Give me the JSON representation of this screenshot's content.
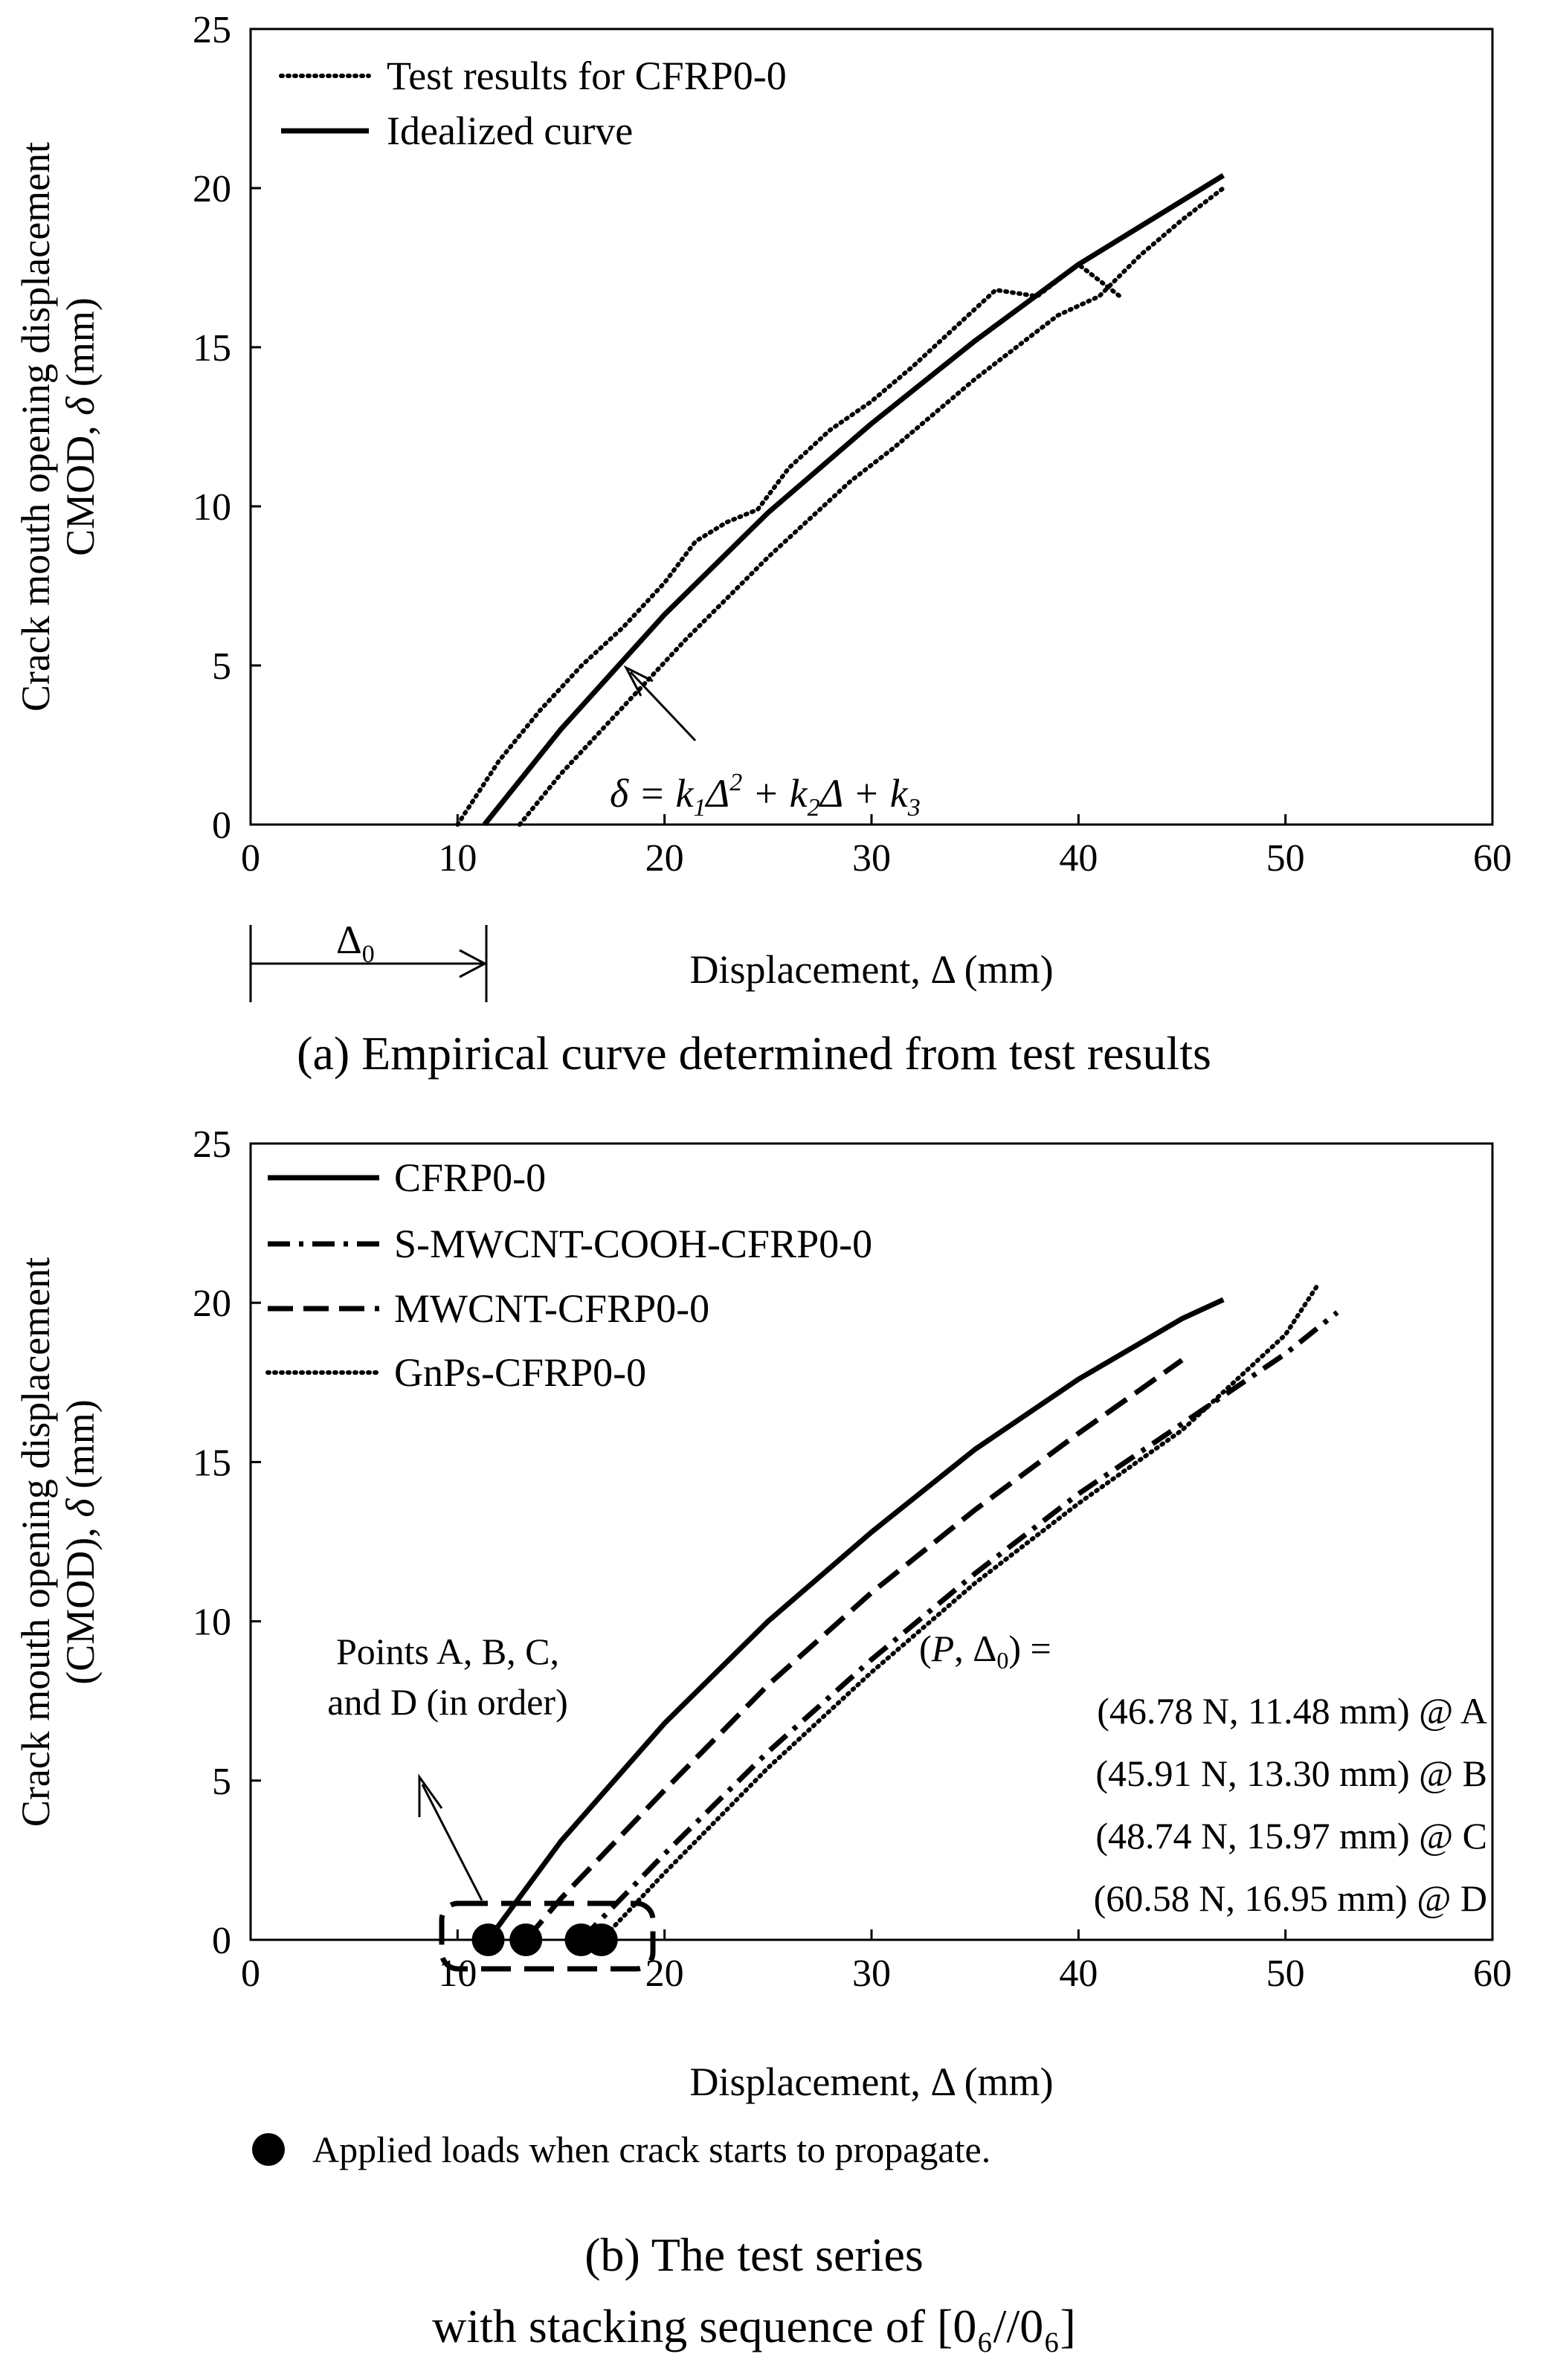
{
  "chart_data": [
    {
      "type": "line",
      "xlabel": "Displacement, Δ (mm)",
      "ylabel": "Crack mouth opening displacement CMOD, δ (mm)",
      "xlim": [
        0,
        60
      ],
      "ylim": [
        0,
        25
      ],
      "x_ticks": [
        "0",
        "10",
        "20",
        "30",
        "40",
        "50",
        "60"
      ],
      "y_ticks": [
        "0",
        "5",
        "10",
        "15",
        "20",
        "25"
      ],
      "grid": false,
      "legend_position": "top-left",
      "series": [
        {
          "name": "Test results for CFRP0-0",
          "style": "dotted",
          "x": [
            10.0,
            12,
            14,
            16,
            18,
            20,
            21.5,
            23,
            24.5,
            26,
            28,
            30,
            32,
            34,
            36,
            38,
            40,
            42
          ],
          "y": [
            0,
            2.0,
            3.6,
            5.0,
            6.2,
            7.6,
            8.9,
            9.5,
            9.9,
            11.2,
            12.4,
            13.3,
            14.4,
            15.6,
            16.8,
            16.6,
            17.6,
            16.6
          ],
          "x2": [
            13.0,
            15,
            17,
            19,
            21,
            23,
            25,
            27,
            29,
            31,
            33,
            35,
            37,
            39,
            41,
            43,
            45,
            47
          ],
          "y2": [
            0,
            1.6,
            3.0,
            4.4,
            5.8,
            7.1,
            8.4,
            9.6,
            10.8,
            11.8,
            12.9,
            14.0,
            15.0,
            16.0,
            16.6,
            17.9,
            19.0,
            20.0
          ]
        },
        {
          "name": "Idealized curve",
          "style": "solid",
          "x": [
            11.3,
            15,
            20,
            25,
            30,
            35,
            40,
            45,
            47
          ],
          "y": [
            0,
            3.0,
            6.6,
            9.8,
            12.6,
            15.2,
            17.6,
            19.6,
            20.4
          ]
        }
      ],
      "annotations": [
        {
          "kind": "equation",
          "text": "δ = k₁Δ² + k₂Δ + k₃"
        },
        {
          "kind": "dimension",
          "text": "Δ₀"
        }
      ],
      "caption": "(a) Empirical curve determined from test results"
    },
    {
      "type": "line",
      "xlabel": "Displacement, Δ (mm)",
      "ylabel": "Crack mouth opening displacement (CMOD), δ (mm)",
      "xlim": [
        0,
        60
      ],
      "ylim": [
        0,
        25
      ],
      "x_ticks": [
        "0",
        "10",
        "20",
        "30",
        "40",
        "50",
        "60"
      ],
      "y_ticks": [
        "0",
        "5",
        "10",
        "15",
        "20",
        "25"
      ],
      "grid": false,
      "legend_position": "top-left",
      "series": [
        {
          "name": "CFRP0-0",
          "style": "solid",
          "x": [
            11.48,
            15,
            20,
            25,
            30,
            35,
            40,
            45,
            47
          ],
          "y": [
            0,
            3.1,
            6.8,
            10.0,
            12.8,
            15.4,
            17.6,
            19.5,
            20.1
          ]
        },
        {
          "name": "S-MWCNT-COOH-CFRP0-0",
          "style": "dash-dot",
          "x": [
            15.97,
            20,
            25,
            30,
            35,
            40,
            45,
            50,
            52.5
          ],
          "y": [
            0,
            2.7,
            5.9,
            8.8,
            11.5,
            14.0,
            16.2,
            18.4,
            19.7
          ]
        },
        {
          "name": "MWCNT-CFRP0-0",
          "style": "dashed",
          "x": [
            13.3,
            15,
            20,
            25,
            30,
            35,
            40,
            45
          ],
          "y": [
            0,
            1.3,
            4.7,
            8.0,
            10.9,
            13.5,
            15.9,
            18.2
          ]
        },
        {
          "name": "GnPs-CFRP0-0",
          "style": "dotted",
          "x": [
            16.95,
            20,
            25,
            30,
            35,
            40,
            45,
            50,
            51.6
          ],
          "y": [
            0,
            2.1,
            5.4,
            8.4,
            11.2,
            13.7,
            16.0,
            19.0,
            20.6
          ]
        }
      ],
      "points": [
        {
          "label": "A",
          "P": "46.78 N",
          "x": 11.48,
          "y": 0
        },
        {
          "label": "B",
          "P": "45.91 N",
          "x": 13.3,
          "y": 0
        },
        {
          "label": "C",
          "P": "48.74 N",
          "x": 15.97,
          "y": 0
        },
        {
          "label": "D",
          "P": "60.58 N",
          "x": 16.95,
          "y": 0
        }
      ],
      "callout": [
        "Points A, B, C,",
        "and D (in order)"
      ],
      "values_header": "(P, Δ0) =",
      "values_lines": [
        "(46.78 N, 11.48 mm) @ A",
        "(45.91 N, 13.30 mm) @ B",
        "(48.74 N, 15.97 mm) @ C",
        "(60.58 N, 16.95 mm) @ D"
      ],
      "marker_note": "Applied loads when crack starts to propagate.",
      "caption": [
        "(b) The test series",
        "with stacking sequence of [0₆//0₆]"
      ]
    }
  ]
}
